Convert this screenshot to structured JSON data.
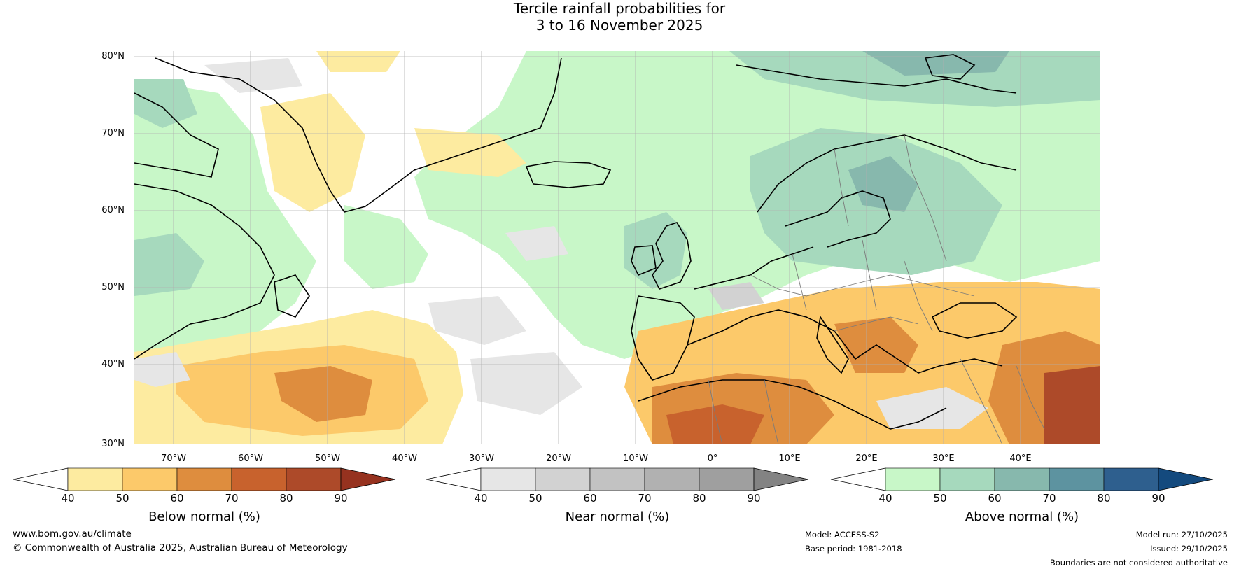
{
  "title": {
    "line1": "Tercile rainfall probabilities for",
    "line2": "3 to 16 November 2025"
  },
  "map": {
    "lat_labels": [
      "80°N",
      "70°N",
      "60°N",
      "50°N",
      "40°N",
      "30°N"
    ],
    "lon_labels": [
      "70°W",
      "60°W",
      "50°W",
      "40°W",
      "30°W",
      "20°W",
      "10°W",
      "0°",
      "10°E",
      "20°E",
      "30°E",
      "40°E"
    ]
  },
  "colorbars": [
    {
      "title": "Below normal (%)",
      "ticks": [
        "40",
        "50",
        "60",
        "70",
        "80",
        "90"
      ],
      "colors": [
        "#ffffff",
        "#fdeba0",
        "#fcc96a",
        "#de8d3e",
        "#c8622d",
        "#ad4a29",
        "#96321f"
      ]
    },
    {
      "title": "Near normal (%)",
      "ticks": [
        "40",
        "50",
        "60",
        "70",
        "80",
        "90"
      ],
      "colors": [
        "#ffffff",
        "#e6e6e6",
        "#d2d2d2",
        "#c2c2c2",
        "#b1b1b1",
        "#9f9f9f",
        "#838383"
      ]
    },
    {
      "title": "Above normal (%)",
      "ticks": [
        "40",
        "50",
        "60",
        "70",
        "80",
        "90"
      ],
      "colors": [
        "#ffffff",
        "#c8f7c8",
        "#a6d9bd",
        "#87b8ad",
        "#5d93a0",
        "#2e5f8e",
        "#144a7e"
      ]
    }
  ],
  "footer": {
    "website": "www.bom.gov.au/climate",
    "copyright": "© Commonwealth of Australia 2025, Australian Bureau of Meteorology",
    "model": "Model: ACCESS-S2",
    "base_period": "Base period: 1981-2018",
    "model_run": "Model run: 27/10/2025",
    "issued": "Issued: 29/10/2025",
    "disclaimer": "Boundaries are not considered authoritative"
  }
}
